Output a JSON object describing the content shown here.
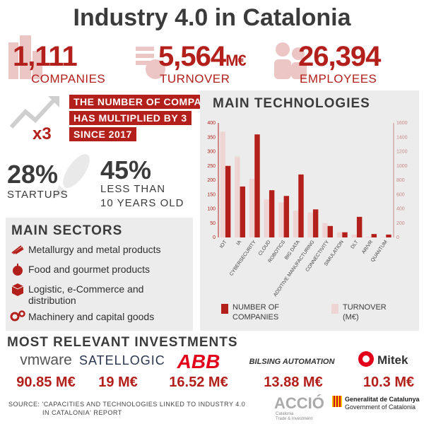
{
  "title": "Industry 4.0 in Catalonia",
  "stats": [
    {
      "value": "1,111",
      "label": "COMPANIES"
    },
    {
      "value": "5,564",
      "unit": "M€",
      "label": "TURNOVER"
    },
    {
      "value": "26,394",
      "label": "EMPLOYEES"
    }
  ],
  "growth": {
    "multiplier": "x3",
    "lines": [
      "THE NUMBER OF COMPANIES",
      "HAS MULTIPLIED BY 3",
      "SINCE 2017"
    ]
  },
  "percentages": [
    {
      "value": "28%",
      "label_lines": [
        "STARTUPS"
      ]
    },
    {
      "value": "45%",
      "label_lines": [
        "LESS THAN",
        "10 YEARS OLD"
      ]
    }
  ],
  "sectors": {
    "heading": "MAIN SECTORS",
    "items": [
      {
        "label": "Metallurgy and metal products",
        "icon": "metal-coil-icon"
      },
      {
        "label": "Food and gourmet products",
        "icon": "apple-icon"
      },
      {
        "label": "Logistic, e-Commerce and distribution",
        "icon": "box-icon"
      },
      {
        "label": "Machinery and capital goods",
        "icon": "gears-icon"
      }
    ]
  },
  "chart_data": {
    "type": "bar",
    "title": "MAIN TECHNOLOGIES",
    "categories": [
      "IOT",
      "IA",
      "CYBERSECURITY",
      "CLOUD",
      "ROBOTICS",
      "BIG DATA",
      "ADDITIVE MANUFACTURING",
      "CONNECTIVITY",
      "SIMULATION",
      "DLT",
      "AR/VR",
      "QUANTUM"
    ],
    "series": [
      {
        "name": "NUMBER OF COMPANIES",
        "axis": "left",
        "color": "#b3201b",
        "values": [
          250,
          178,
          360,
          165,
          145,
          220,
          98,
          40,
          18,
          72,
          12,
          10
        ]
      },
      {
        "name": "TURNOVER (M€)",
        "axis": "right",
        "color": "#eed5d4",
        "values": [
          1480,
          1130,
          820,
          530,
          490,
          375,
          350,
          200,
          75,
          40,
          10,
          5
        ]
      }
    ],
    "ylim_left": [
      0,
      400
    ],
    "yticks_left": [
      "0",
      "50",
      "100",
      "150",
      "200",
      "250",
      "300",
      "350",
      "400"
    ],
    "ylim_right": [
      0,
      1600
    ],
    "yticks_right": [
      "0",
      "200",
      "400",
      "600",
      "800",
      "1000",
      "1200",
      "1400",
      "1600"
    ],
    "legend": [
      {
        "label_lines": [
          "NUMBER OF",
          "COMPANIES"
        ],
        "color": "#b3201b"
      },
      {
        "label_lines": [
          "TURNOVER",
          "(M€)"
        ],
        "color": "#eed5d4"
      }
    ],
    "legend_position": "bottom"
  },
  "investments": {
    "heading": "MOST RELEVANT INVESTMENTS",
    "items": [
      {
        "company": "vmware",
        "value": "90.85 M€"
      },
      {
        "company": "SATELLOGIC",
        "value": "19 M€"
      },
      {
        "company": "ABB",
        "value": "16.52 M€"
      },
      {
        "company": "BILSING AUTOMATION",
        "value": "13.88 M€"
      },
      {
        "company": "Mitek",
        "value": "10.3 M€"
      }
    ]
  },
  "source": [
    "SOURCE: 'CAPACITIES AND TECHNOLOGIES LINKED TO INDUSTRY 4.0",
    "IN CATALONIA' REPORT"
  ],
  "footer_logos": {
    "accio": "ACCIÓ",
    "accio_sub": [
      "Catalonia",
      "Trade & Investment"
    ],
    "gencat": [
      "Generalitat de Catalunya",
      "Government of Catalonia"
    ]
  },
  "colors": {
    "accent": "#b3201b",
    "light_accent": "#eed5d4",
    "panel": "#ececec",
    "text": "#3b3b3b"
  }
}
